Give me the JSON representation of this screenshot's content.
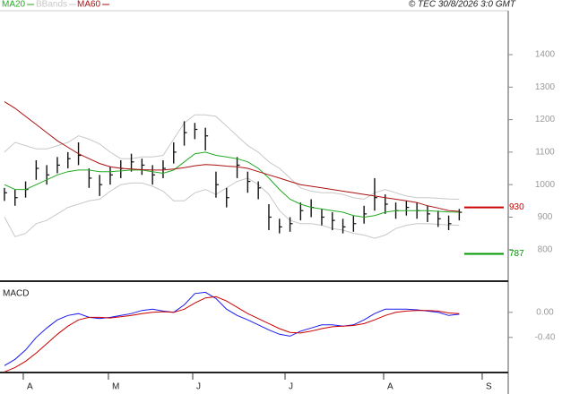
{
  "chart_data": [
    {
      "type": "ohlc",
      "copyright": "© TEC 30/8/2026 3:0 GMT",
      "x": [
        0,
        1,
        2,
        3,
        4,
        5,
        6,
        7,
        8,
        9,
        10,
        11,
        12,
        13,
        14,
        15,
        16,
        17,
        18,
        19,
        20,
        21,
        22,
        23,
        24,
        25,
        26,
        27,
        28,
        29,
        30,
        31,
        32,
        33,
        34,
        35,
        36,
        37,
        38,
        39,
        40,
        41,
        42,
        43
      ],
      "high": [
        990,
        985,
        1010,
        1075,
        1060,
        1085,
        1100,
        1130,
        1050,
        1030,
        1055,
        1075,
        1095,
        1080,
        1060,
        1075,
        1130,
        1195,
        1190,
        1175,
        1040,
        990,
        1085,
        1040,
        1010,
        940,
        895,
        900,
        945,
        955,
        925,
        915,
        895,
        905,
        935,
        1020,
        970,
        945,
        950,
        945,
        935,
        920,
        905,
        925
      ],
      "low": [
        950,
        935,
        960,
        1015,
        1000,
        1035,
        1050,
        1060,
        990,
        965,
        1000,
        1020,
        1040,
        1030,
        1000,
        1020,
        1065,
        1120,
        1140,
        1105,
        960,
        930,
        1020,
        975,
        955,
        860,
        850,
        855,
        890,
        900,
        875,
        860,
        850,
        855,
        880,
        920,
        910,
        895,
        905,
        895,
        885,
        870,
        860,
        890
      ],
      "close": [
        975,
        960,
        985,
        1050,
        1030,
        1060,
        1080,
        1090,
        1020,
        1000,
        1030,
        1050,
        1070,
        1060,
        1030,
        1050,
        1100,
        1160,
        1170,
        1150,
        1000,
        960,
        1060,
        1010,
        990,
        900,
        870,
        880,
        920,
        930,
        900,
        890,
        870,
        880,
        910,
        960,
        940,
        920,
        930,
        920,
        910,
        895,
        880,
        915
      ],
      "color": "#111111",
      "series": [
        {
          "name": "MA20",
          "color": "#22aa22",
          "values": [
            1000,
            985,
            985,
            1000,
            1015,
            1030,
            1040,
            1045,
            1045,
            1040,
            1040,
            1042,
            1045,
            1045,
            1040,
            1035,
            1045,
            1070,
            1095,
            1100,
            1090,
            1085,
            1080,
            1070,
            1050,
            1020,
            985,
            955,
            940,
            930,
            925,
            920,
            915,
            905,
            900,
            905,
            915,
            920,
            920,
            920,
            920,
            918,
            916,
            915
          ]
        },
        {
          "name": "MA60",
          "color": "#aa1111",
          "values": [
            1255,
            1235,
            1210,
            1185,
            1160,
            1135,
            1115,
            1095,
            1080,
            1065,
            1055,
            1050,
            1048,
            1046,
            1045,
            1045,
            1048,
            1052,
            1058,
            1062,
            1060,
            1057,
            1055,
            1050,
            1040,
            1030,
            1020,
            1010,
            1000,
            995,
            990,
            985,
            980,
            975,
            970,
            965,
            960,
            955,
            950,
            945,
            935,
            928,
            920,
            918
          ]
        }
      ],
      "bands": {
        "name": "BBands",
        "color": "#c8c8c8",
        "upper": [
          1100,
          1130,
          1120,
          1110,
          1110,
          1120,
          1130,
          1150,
          1140,
          1125,
          1100,
          1080,
          1080,
          1085,
          1085,
          1090,
          1140,
          1190,
          1215,
          1215,
          1210,
          1180,
          1150,
          1120,
          1100,
          1070,
          1050,
          1020,
          990,
          980,
          975,
          975,
          970,
          960,
          955,
          975,
          985,
          975,
          965,
          960,
          960,
          958,
          956,
          955
        ],
        "lower": [
          900,
          840,
          850,
          880,
          890,
          910,
          930,
          940,
          950,
          955,
          980,
          1000,
          1005,
          1005,
          995,
          980,
          950,
          950,
          975,
          985,
          970,
          990,
          1010,
          1020,
          1000,
          970,
          920,
          890,
          880,
          880,
          875,
          865,
          860,
          850,
          845,
          835,
          845,
          865,
          875,
          880,
          880,
          878,
          876,
          875
        ]
      },
      "levels": [
        {
          "value": 930,
          "color": "#cc0000"
        },
        {
          "value": 787,
          "color": "#009900"
        }
      ],
      "xlim": [
        -0.42,
        47.63
      ],
      "xticks": [
        {
          "value": 1.78,
          "label": "A"
        },
        {
          "value": 9.83,
          "label": "M"
        },
        {
          "value": 17.8,
          "label": "J"
        },
        {
          "value": 26.53,
          "label": "J"
        },
        {
          "value": 35.85,
          "label": "A"
        },
        {
          "value": 45.17,
          "label": "S"
        }
      ],
      "ylim": [
        703,
        1535
      ],
      "yticks": [
        800,
        900,
        1000,
        1100,
        1200,
        1300,
        1400
      ]
    },
    {
      "type": "line",
      "title": "MACD",
      "series": [
        {
          "color": "#1a1aee",
          "values": [
            -0.85,
            -0.75,
            -0.6,
            -0.4,
            -0.25,
            -0.12,
            -0.05,
            -0.02,
            -0.08,
            -0.1,
            -0.08,
            -0.05,
            -0.02,
            0.03,
            0.05,
            0.02,
            0.0,
            0.12,
            0.3,
            0.32,
            0.22,
            0.05,
            -0.05,
            -0.12,
            -0.2,
            -0.28,
            -0.35,
            -0.38,
            -0.3,
            -0.25,
            -0.2,
            -0.2,
            -0.22,
            -0.2,
            -0.12,
            -0.02,
            0.05,
            0.05,
            0.05,
            0.04,
            0.02,
            0.0,
            -0.05,
            -0.03
          ]
        },
        {
          "color": "#cc0000",
          "values": [
            -0.95,
            -0.88,
            -0.78,
            -0.65,
            -0.5,
            -0.35,
            -0.22,
            -0.12,
            -0.08,
            -0.08,
            -0.09,
            -0.07,
            -0.05,
            -0.02,
            0.0,
            0.01,
            0.0,
            0.05,
            0.15,
            0.23,
            0.25,
            0.18,
            0.08,
            -0.02,
            -0.1,
            -0.18,
            -0.26,
            -0.32,
            -0.33,
            -0.3,
            -0.26,
            -0.23,
            -0.22,
            -0.21,
            -0.18,
            -0.12,
            -0.05,
            0.0,
            0.02,
            0.03,
            0.03,
            0.02,
            -0.01,
            -0.02
          ]
        }
      ],
      "ylim": [
        -0.96,
        0.44
      ],
      "yticks": [
        {
          "value": 0,
          "label": "0.00"
        },
        {
          "value": -0.4,
          "label": "-0.40"
        }
      ]
    }
  ]
}
